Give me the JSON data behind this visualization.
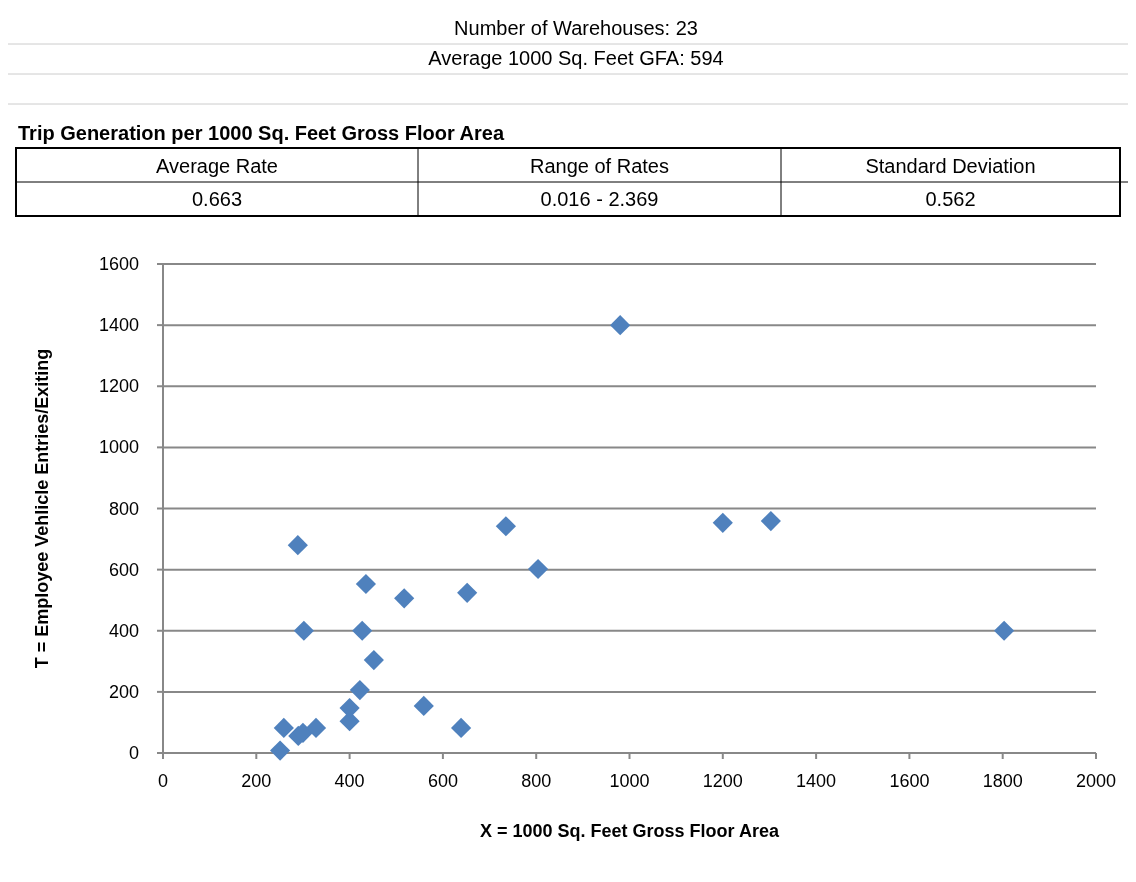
{
  "chart_data": {
    "type": "scatter",
    "title": "Trip Generation per 1000 Sq. Feet Gross Floor Area",
    "annotations": [
      "Number of Warehouses:  23",
      "Average 1000 Sq. Feet GFA: 594",
      "Average Rate",
      "Range of Rates",
      "Standard Deviation",
      "0.663",
      "0.016 - 2.369",
      "0.562"
    ],
    "xlabel": "X = 1000 Sq. Feet Gross Floor Area",
    "ylabel": "T = Employee Vehlicle Entries/Exiting",
    "x": [
      251,
      259,
      289,
      302,
      290,
      300,
      328,
      400,
      400,
      422,
      427,
      435,
      452,
      517,
      559,
      639,
      652,
      735,
      804,
      980,
      1200,
      1303,
      1803
    ],
    "series": [
      {
        "color": "#4f81bd",
        "values": [
          8,
          82,
          680,
          400,
          56,
          66,
          82,
          104,
          147,
          206,
          400,
          553,
          304,
          506,
          154,
          82,
          524,
          742,
          602,
          1400,
          753,
          759,
          400
        ]
      }
    ],
    "xlim": [
      0,
      2000
    ],
    "xticks": [
      0,
      200,
      400,
      600,
      800,
      1000,
      1200,
      1400,
      1600,
      1800,
      2000
    ],
    "ylim": [
      0,
      1600
    ],
    "yticks": [
      0,
      200,
      400,
      600,
      800,
      1000,
      1200,
      1400,
      1600
    ],
    "grid": "y",
    "marker": "diamond"
  }
}
